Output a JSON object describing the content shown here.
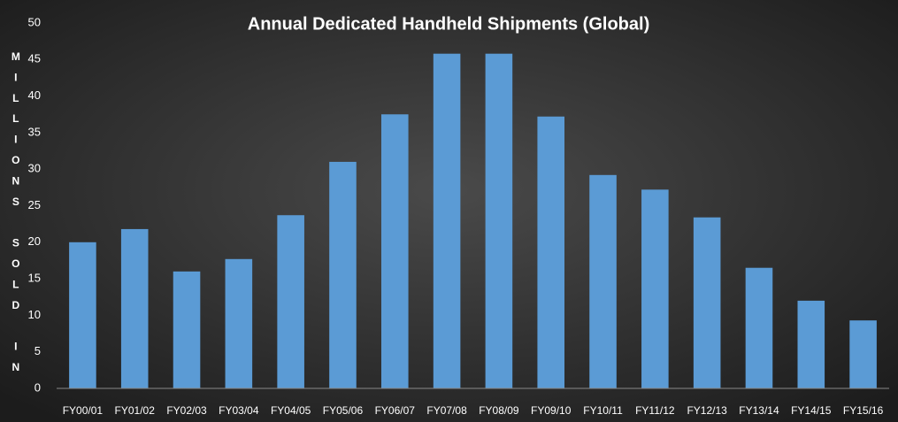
{
  "chart_data": {
    "type": "bar",
    "title": "Annual Dedicated Handheld Shipments (Global)",
    "y_label": "MILLIONS SOLD IN",
    "categories": [
      "FY00/01",
      "FY01/02",
      "FY02/03",
      "FY03/04",
      "FY04/05",
      "FY05/06",
      "FY06/07",
      "FY07/08",
      "FY08/09",
      "FY09/10",
      "FY10/11",
      "FY11/12",
      "FY12/13",
      "FY13/14",
      "FY14/15",
      "FY15/16"
    ],
    "values": [
      20,
      21.8,
      16,
      17.7,
      23.7,
      31,
      37.5,
      45.8,
      45.8,
      37.2,
      29.2,
      27.2,
      23.4,
      16.5,
      12,
      9.3
    ],
    "color": "#5b9bd5",
    "ylim": [
      0,
      50
    ],
    "yticks": [
      0,
      5,
      10,
      15,
      20,
      25,
      30,
      35,
      40,
      45,
      50
    ],
    "grid": false
  }
}
